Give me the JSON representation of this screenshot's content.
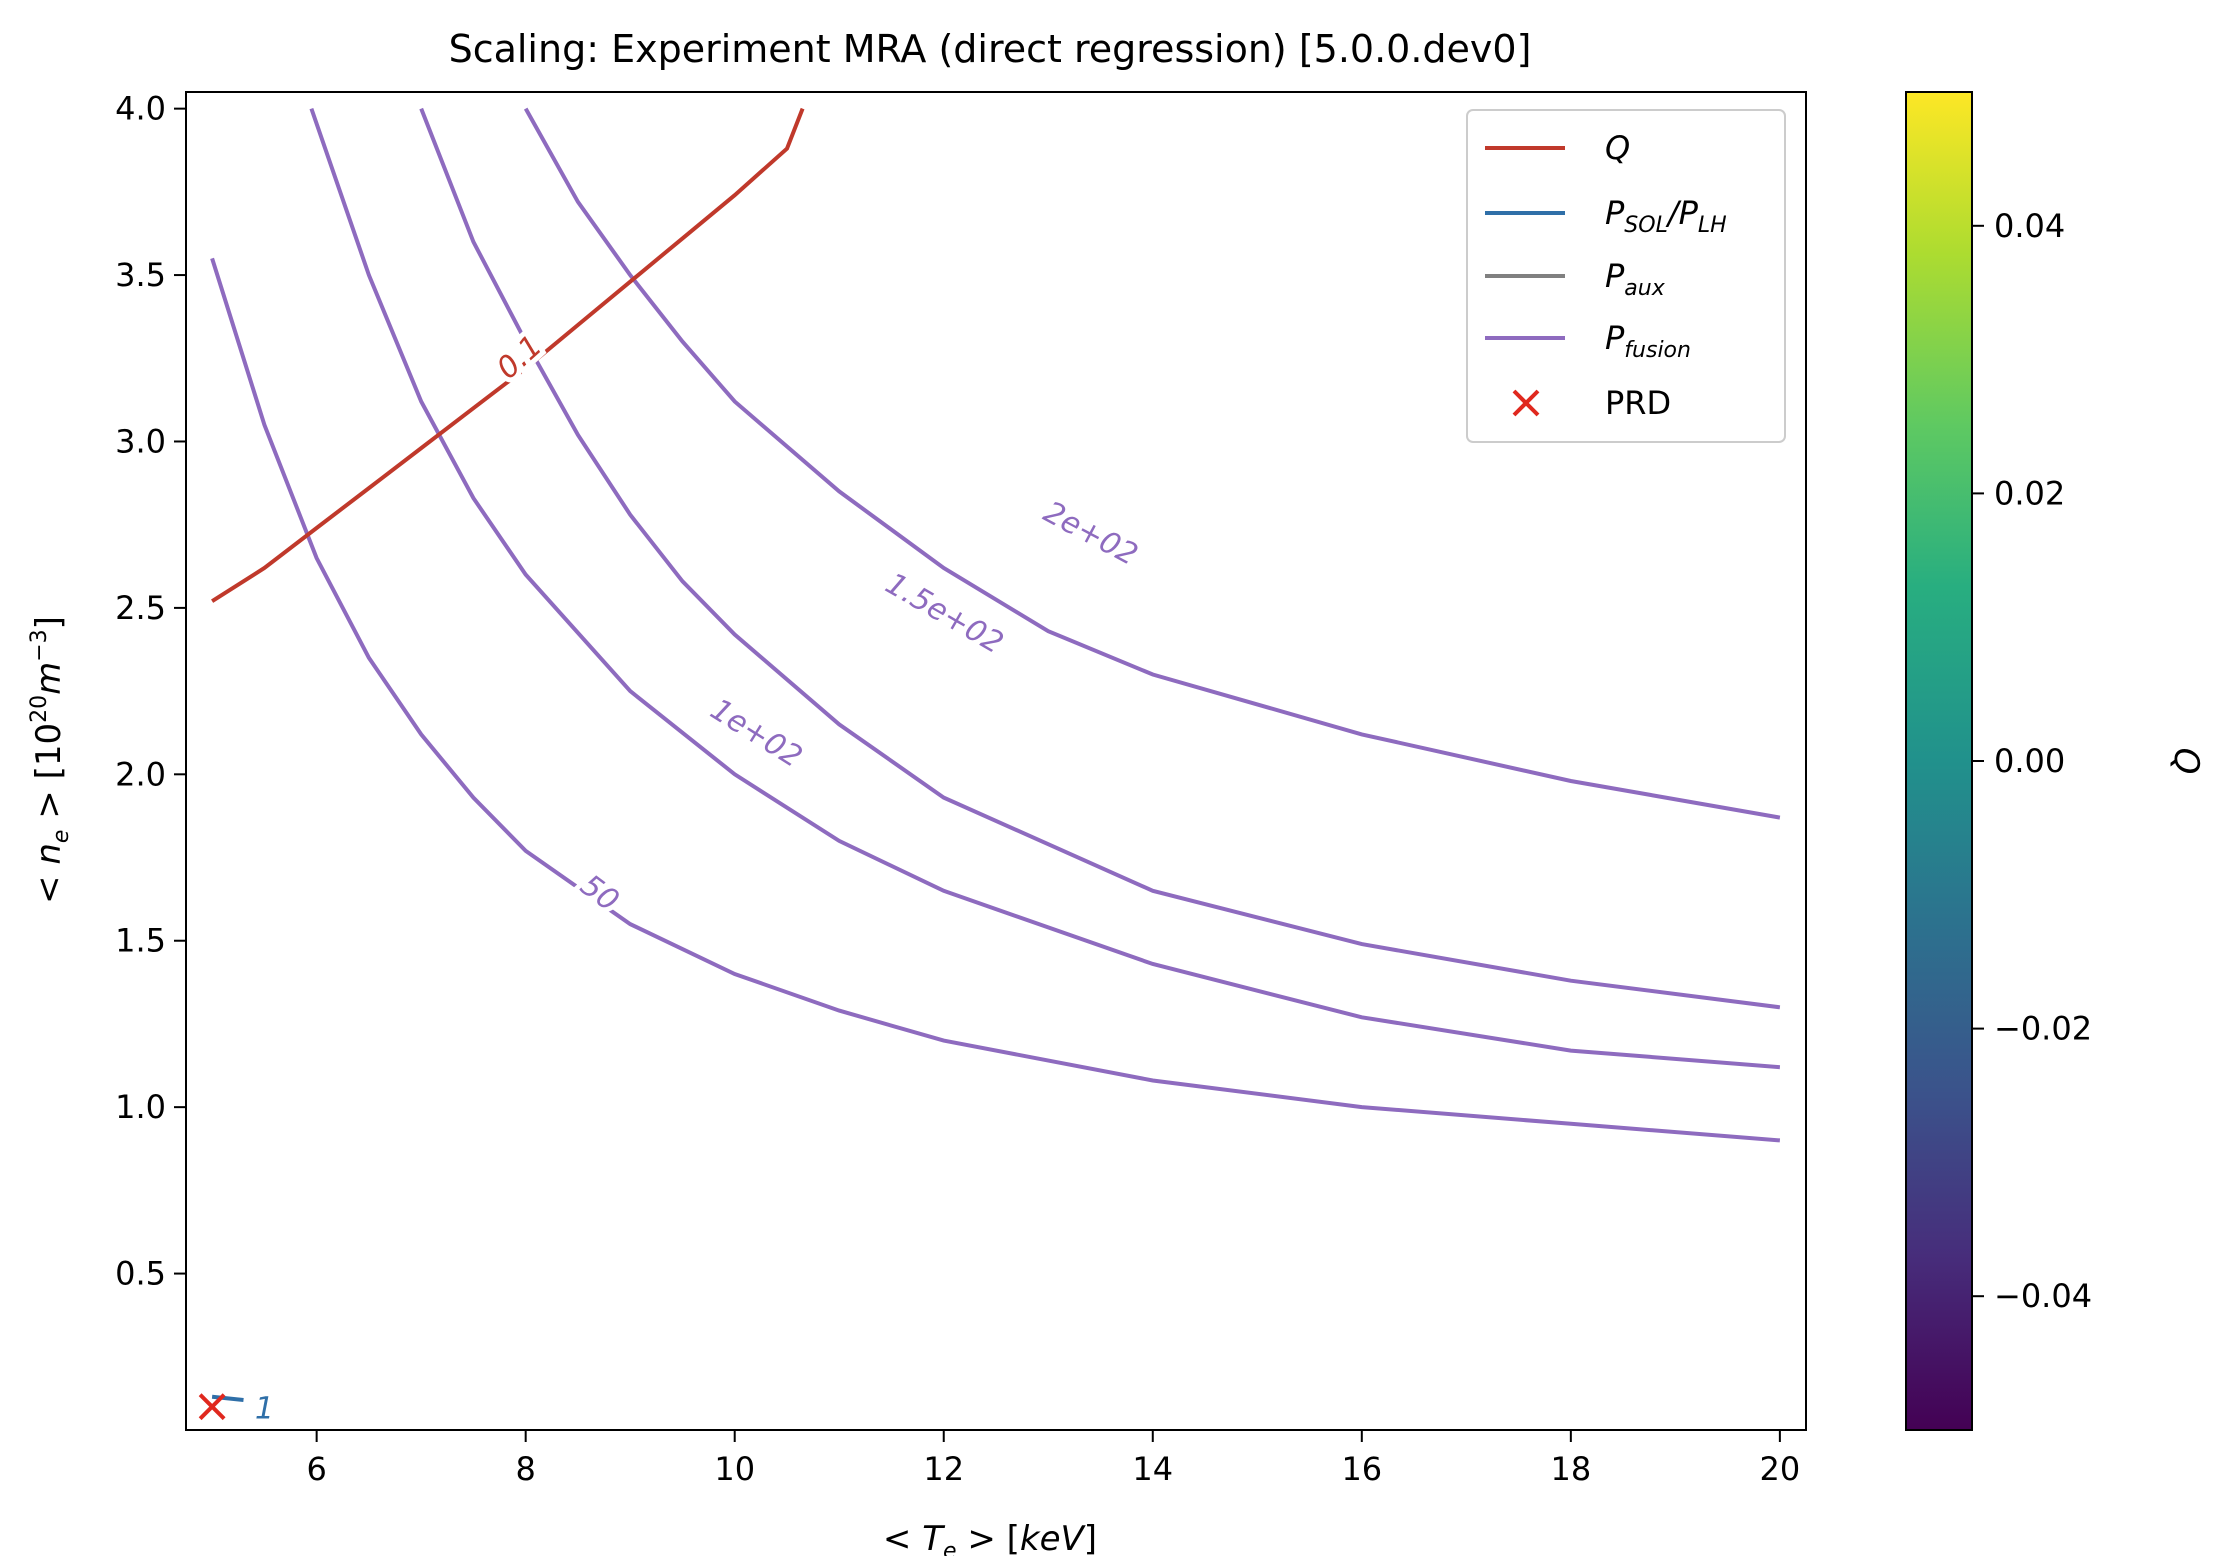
{
  "chart_data": {
    "type": "contour",
    "title": "Scaling: Experiment MRA (direct regression) [5.0.0.dev0]",
    "xlabel": "<Te> [keV]",
    "ylabel": "<ne> [10^20 m^-3]",
    "xlim": [
      4.75,
      20.25
    ],
    "ylim": [
      0.03,
      4.05
    ],
    "xticks": [
      6,
      8,
      10,
      12,
      14,
      16,
      18,
      20
    ],
    "xtick_labels": [
      "6",
      "8",
      "10",
      "12",
      "14",
      "16",
      "18",
      "20"
    ],
    "yticks": [
      0.5,
      1.0,
      1.5,
      2.0,
      2.5,
      3.0,
      3.5,
      4.0
    ],
    "ytick_labels": [
      "0.5",
      "1.0",
      "1.5",
      "2.0",
      "2.5",
      "3.0",
      "3.5",
      "4.0"
    ],
    "legend": {
      "position": "top-right",
      "entries": [
        {
          "label": "Q",
          "color": "#c0392b",
          "marker": "line"
        },
        {
          "label": "PSOL/PLH",
          "color": "#2f6fa8",
          "marker": "line"
        },
        {
          "label": "Paux",
          "color": "#808080",
          "marker": "line"
        },
        {
          "label": "Pfusion",
          "color": "#8e6bbf",
          "marker": "line"
        },
        {
          "label": "PRD",
          "color": "#e0281e",
          "marker": "x"
        }
      ]
    },
    "series": [
      {
        "name": "Pfusion",
        "level_label": "50",
        "color": "#8e6bbf",
        "label_at": [
          8.7,
          1.64
        ],
        "label_angle": 37,
        "points": [
          [
            5,
            3.55
          ],
          [
            5.5,
            3.05
          ],
          [
            6,
            2.65
          ],
          [
            6.5,
            2.35
          ],
          [
            7,
            2.12
          ],
          [
            7.5,
            1.93
          ],
          [
            8,
            1.77
          ],
          [
            9,
            1.55
          ],
          [
            10,
            1.4
          ],
          [
            11,
            1.29
          ],
          [
            12,
            1.2
          ],
          [
            14,
            1.08
          ],
          [
            16,
            1.0
          ],
          [
            18,
            0.95
          ],
          [
            20,
            0.9
          ]
        ]
      },
      {
        "name": "Pfusion",
        "level_label": "1e+02",
        "color": "#8e6bbf",
        "label_at": [
          10.2,
          2.12
        ],
        "label_angle": 32,
        "points": [
          [
            7,
            4.0
          ],
          [
            7.5,
            3.6
          ],
          [
            8,
            3.3
          ],
          [
            8.5,
            3.02
          ],
          [
            9,
            2.78
          ],
          [
            9.5,
            2.58
          ],
          [
            10,
            2.42
          ],
          [
            11,
            2.15
          ],
          [
            12,
            1.93
          ],
          [
            14,
            1.65
          ],
          [
            16,
            1.49
          ],
          [
            18,
            1.38
          ],
          [
            20,
            1.3
          ]
        ]
      },
      {
        "name": "Pfusion",
        "level_label": "1.5e+02",
        "color": "#8e6bbf",
        "label_at": [
          12.0,
          2.48
        ],
        "label_angle": 30,
        "points": [
          [
            5.95,
            4.0
          ],
          [
            6.5,
            3.5
          ],
          [
            7,
            3.12
          ],
          [
            7.5,
            2.83
          ],
          [
            8,
            2.6
          ],
          [
            9,
            2.25
          ],
          [
            10,
            2.0
          ],
          [
            11,
            1.8
          ],
          [
            12,
            1.65
          ],
          [
            14,
            1.43
          ],
          [
            16,
            1.27
          ],
          [
            18,
            1.17
          ],
          [
            20,
            1.12
          ]
        ]
      },
      {
        "name": "Pfusion",
        "level_label": "2e+02",
        "color": "#8e6bbf",
        "label_at": [
          13.4,
          2.72
        ],
        "label_angle": 28,
        "points": [
          [
            8,
            4.0
          ],
          [
            8.5,
            3.72
          ],
          [
            9,
            3.5
          ],
          [
            9.5,
            3.3
          ],
          [
            10,
            3.12
          ],
          [
            11,
            2.85
          ],
          [
            12,
            2.62
          ],
          [
            13,
            2.43
          ],
          [
            14,
            2.3
          ],
          [
            16,
            2.12
          ],
          [
            18,
            1.98
          ],
          [
            20,
            1.87
          ]
        ]
      },
      {
        "name": "Q",
        "level_label": "0.1",
        "color": "#c0392b",
        "label_at": [
          7.95,
          3.25
        ],
        "label_angle": -42,
        "points": [
          [
            5,
            2.52
          ],
          [
            5.5,
            2.62
          ],
          [
            6,
            2.74
          ],
          [
            6.5,
            2.86
          ],
          [
            7,
            2.98
          ],
          [
            7.5,
            3.1
          ],
          [
            8,
            3.22
          ],
          [
            8.5,
            3.35
          ],
          [
            9,
            3.48
          ],
          [
            9.5,
            3.61
          ],
          [
            10,
            3.74
          ],
          [
            10.5,
            3.88
          ],
          [
            10.65,
            4.0
          ]
        ]
      },
      {
        "name": "PSOL/PLH",
        "level_label": "1",
        "color": "#2f6fa8",
        "label_at": [
          5.5,
          0.09
        ],
        "label_angle": 0,
        "points": [
          [
            5.0,
            0.13
          ],
          [
            5.3,
            0.12
          ]
        ]
      }
    ],
    "markers": [
      {
        "name": "PRD",
        "x": 5.0,
        "y": 0.1,
        "color": "#e0281e"
      }
    ],
    "colorbar": {
      "label": "Q",
      "min": -0.05,
      "max": 0.05,
      "ticks": [
        -0.04,
        -0.02,
        0.0,
        0.02,
        0.04
      ],
      "tick_labels": [
        "−0.04",
        "−0.02",
        "0.00",
        "0.02",
        "0.04"
      ],
      "colormap": [
        "#440154",
        "#3b528b",
        "#21918c",
        "#5ec962",
        "#fde725"
      ]
    }
  }
}
